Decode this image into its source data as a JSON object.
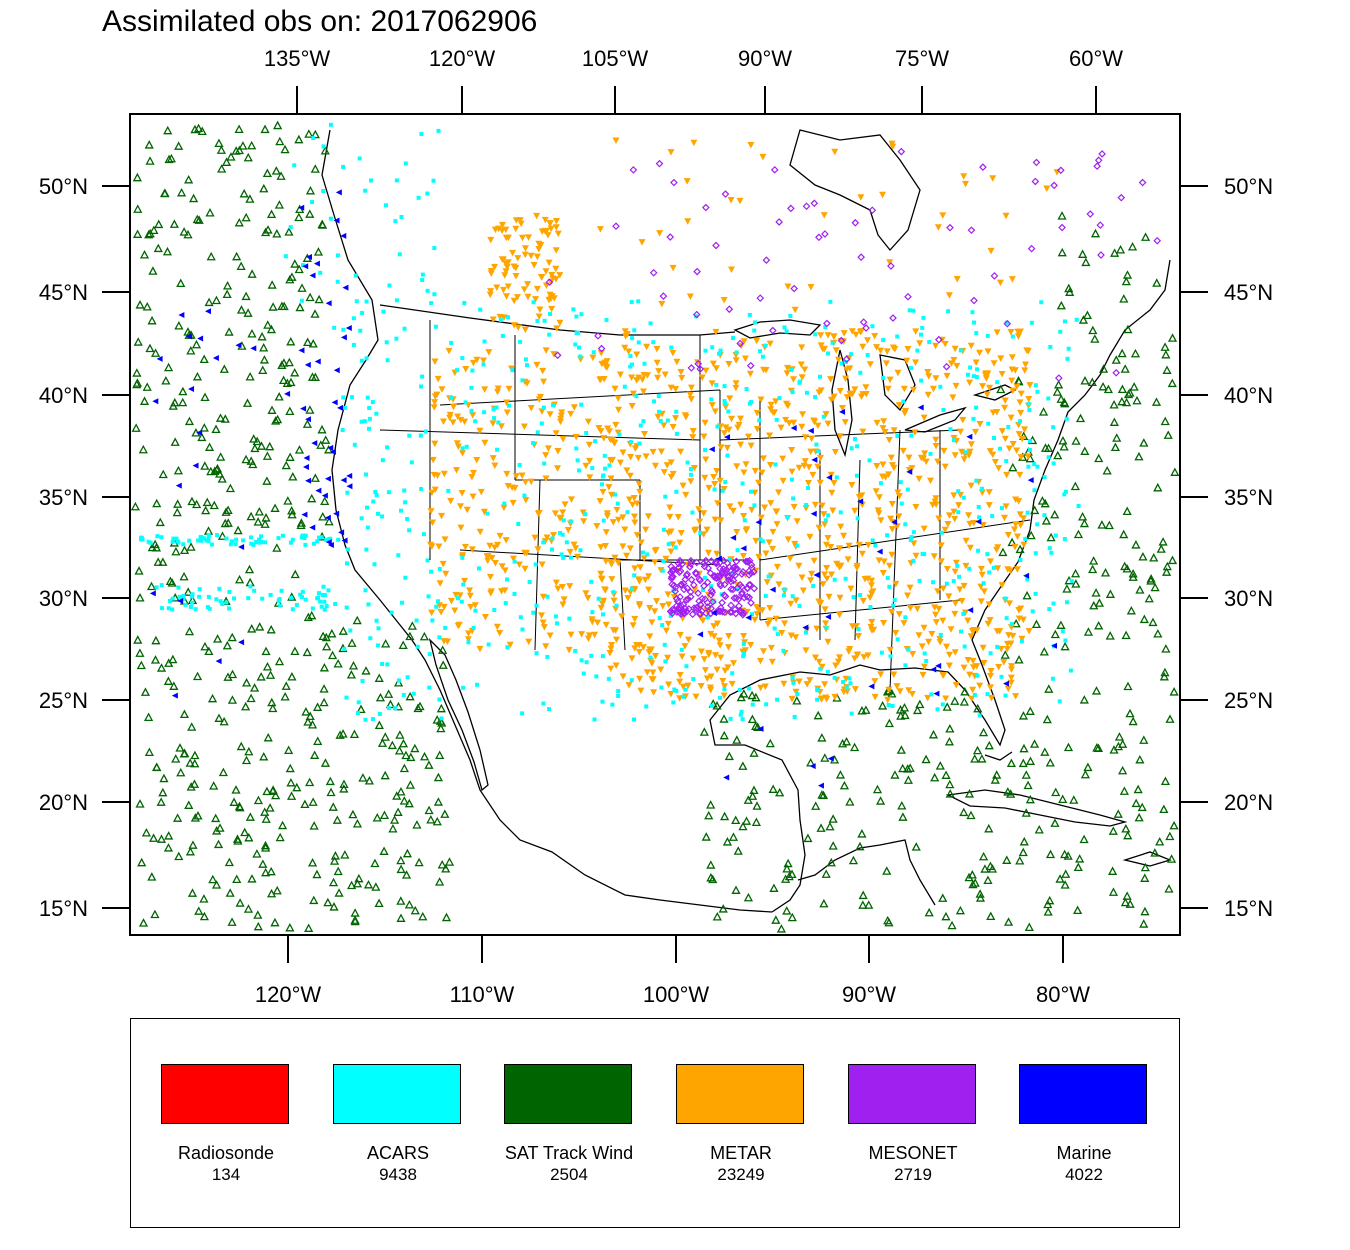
{
  "title": "Assimilated obs on: 2017062906",
  "map": {
    "lon_range": [
      -127.9,
      -73.9
    ],
    "lat_range": [
      13.7,
      53.7
    ],
    "top_axis_labels": [
      "135°W",
      "120°W",
      "105°W",
      "90°W",
      "75°W",
      "60°W"
    ],
    "bottom_axis_labels": [
      "120°W",
      "110°W",
      "100°W",
      "90°W",
      "80°W"
    ],
    "lat_axis_labels": [
      "50°N",
      "45°N",
      "40°N",
      "35°N",
      "30°N",
      "25°N",
      "20°N",
      "15°N"
    ]
  },
  "legend": {
    "items": [
      {
        "name": "Radiosonde",
        "count": "134",
        "color": "#ff0000"
      },
      {
        "name": "ACARS",
        "count": "9438",
        "color": "#00ffff"
      },
      {
        "name": "SAT Track Wind",
        "count": "2504",
        "color": "#006400"
      },
      {
        "name": "METAR",
        "count": "23249",
        "color": "#ffa500"
      },
      {
        "name": "MESONET",
        "count": "2719",
        "color": "#a020f0"
      },
      {
        "name": "Marine",
        "count": "4022",
        "color": "#0000ff"
      }
    ]
  }
}
